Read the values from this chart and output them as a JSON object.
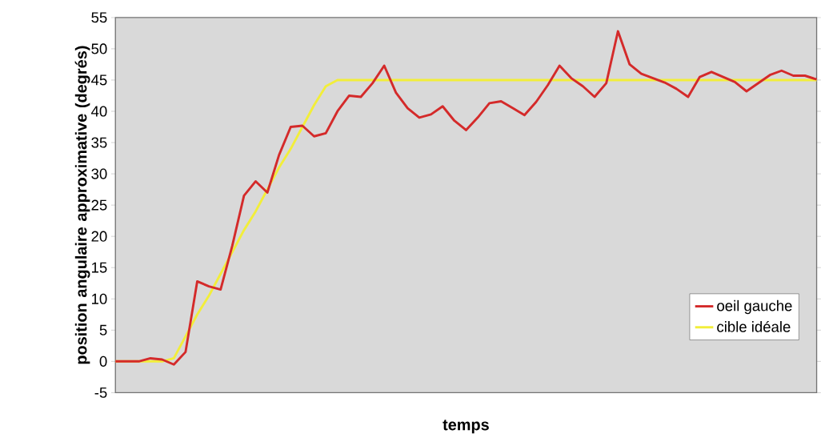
{
  "chart_data": {
    "type": "line",
    "xlabel": "temps",
    "ylabel": "position angulaire approximative (degrés)",
    "categories": [
      null,
      null,
      null,
      null,
      null,
      null,
      null,
      null,
      null,
      null,
      null,
      null,
      null,
      null,
      null,
      null,
      null,
      null,
      null,
      null,
      null,
      null,
      null,
      null,
      null,
      null,
      null,
      null,
      null,
      null,
      null,
      null,
      null,
      null,
      null,
      null,
      null,
      null,
      null,
      null,
      null,
      null,
      null,
      null,
      null,
      null,
      null,
      null,
      null,
      null,
      null,
      null,
      null,
      null,
      null,
      null,
      null,
      null,
      null,
      null,
      null
    ],
    "series": [
      {
        "name": "oeil gauche",
        "color": "#d42a2a",
        "values": [
          0,
          0,
          0,
          0.5,
          0.3,
          -0.5,
          1.5,
          12.8,
          12,
          11.5,
          18.5,
          26.5,
          28.8,
          27,
          33,
          37.5,
          37.7,
          36,
          36.5,
          40,
          42.5,
          42.3,
          44.5,
          47.3,
          43,
          40.5,
          39,
          39.5,
          40.8,
          38.5,
          37,
          39,
          41.3,
          41.6,
          40.5,
          39.4,
          41.5,
          44.2,
          47.3,
          45.3,
          44,
          42.3,
          44.5,
          52.8,
          47.5,
          46,
          45.3,
          44.6,
          43.6,
          42.3,
          45.5,
          46.3,
          45.5,
          44.7,
          43.2,
          44.5,
          45.8,
          46.5,
          45.7,
          45.7,
          45.1
        ]
      },
      {
        "name": "cible idéale",
        "color": "#f2ee3a",
        "values": [
          0,
          0,
          0,
          0,
          0,
          0.5,
          4,
          7.5,
          10.5,
          14,
          17.5,
          21,
          24,
          27.5,
          31,
          34,
          37.5,
          41,
          44,
          45,
          45,
          45,
          45,
          45,
          45,
          45,
          45,
          45,
          45,
          45,
          45,
          45,
          45,
          45,
          45,
          45,
          45,
          45,
          45,
          45,
          45,
          45,
          45,
          45,
          45,
          45,
          45,
          45,
          45,
          45,
          45,
          45,
          45,
          45,
          45,
          45,
          45,
          45,
          45,
          45,
          45
        ]
      }
    ],
    "ylim": [
      -5,
      55
    ],
    "yticks": [
      -5,
      0,
      5,
      10,
      15,
      20,
      25,
      30,
      35,
      40,
      45,
      50,
      55
    ],
    "grid": false,
    "legend": "bottom right"
  }
}
